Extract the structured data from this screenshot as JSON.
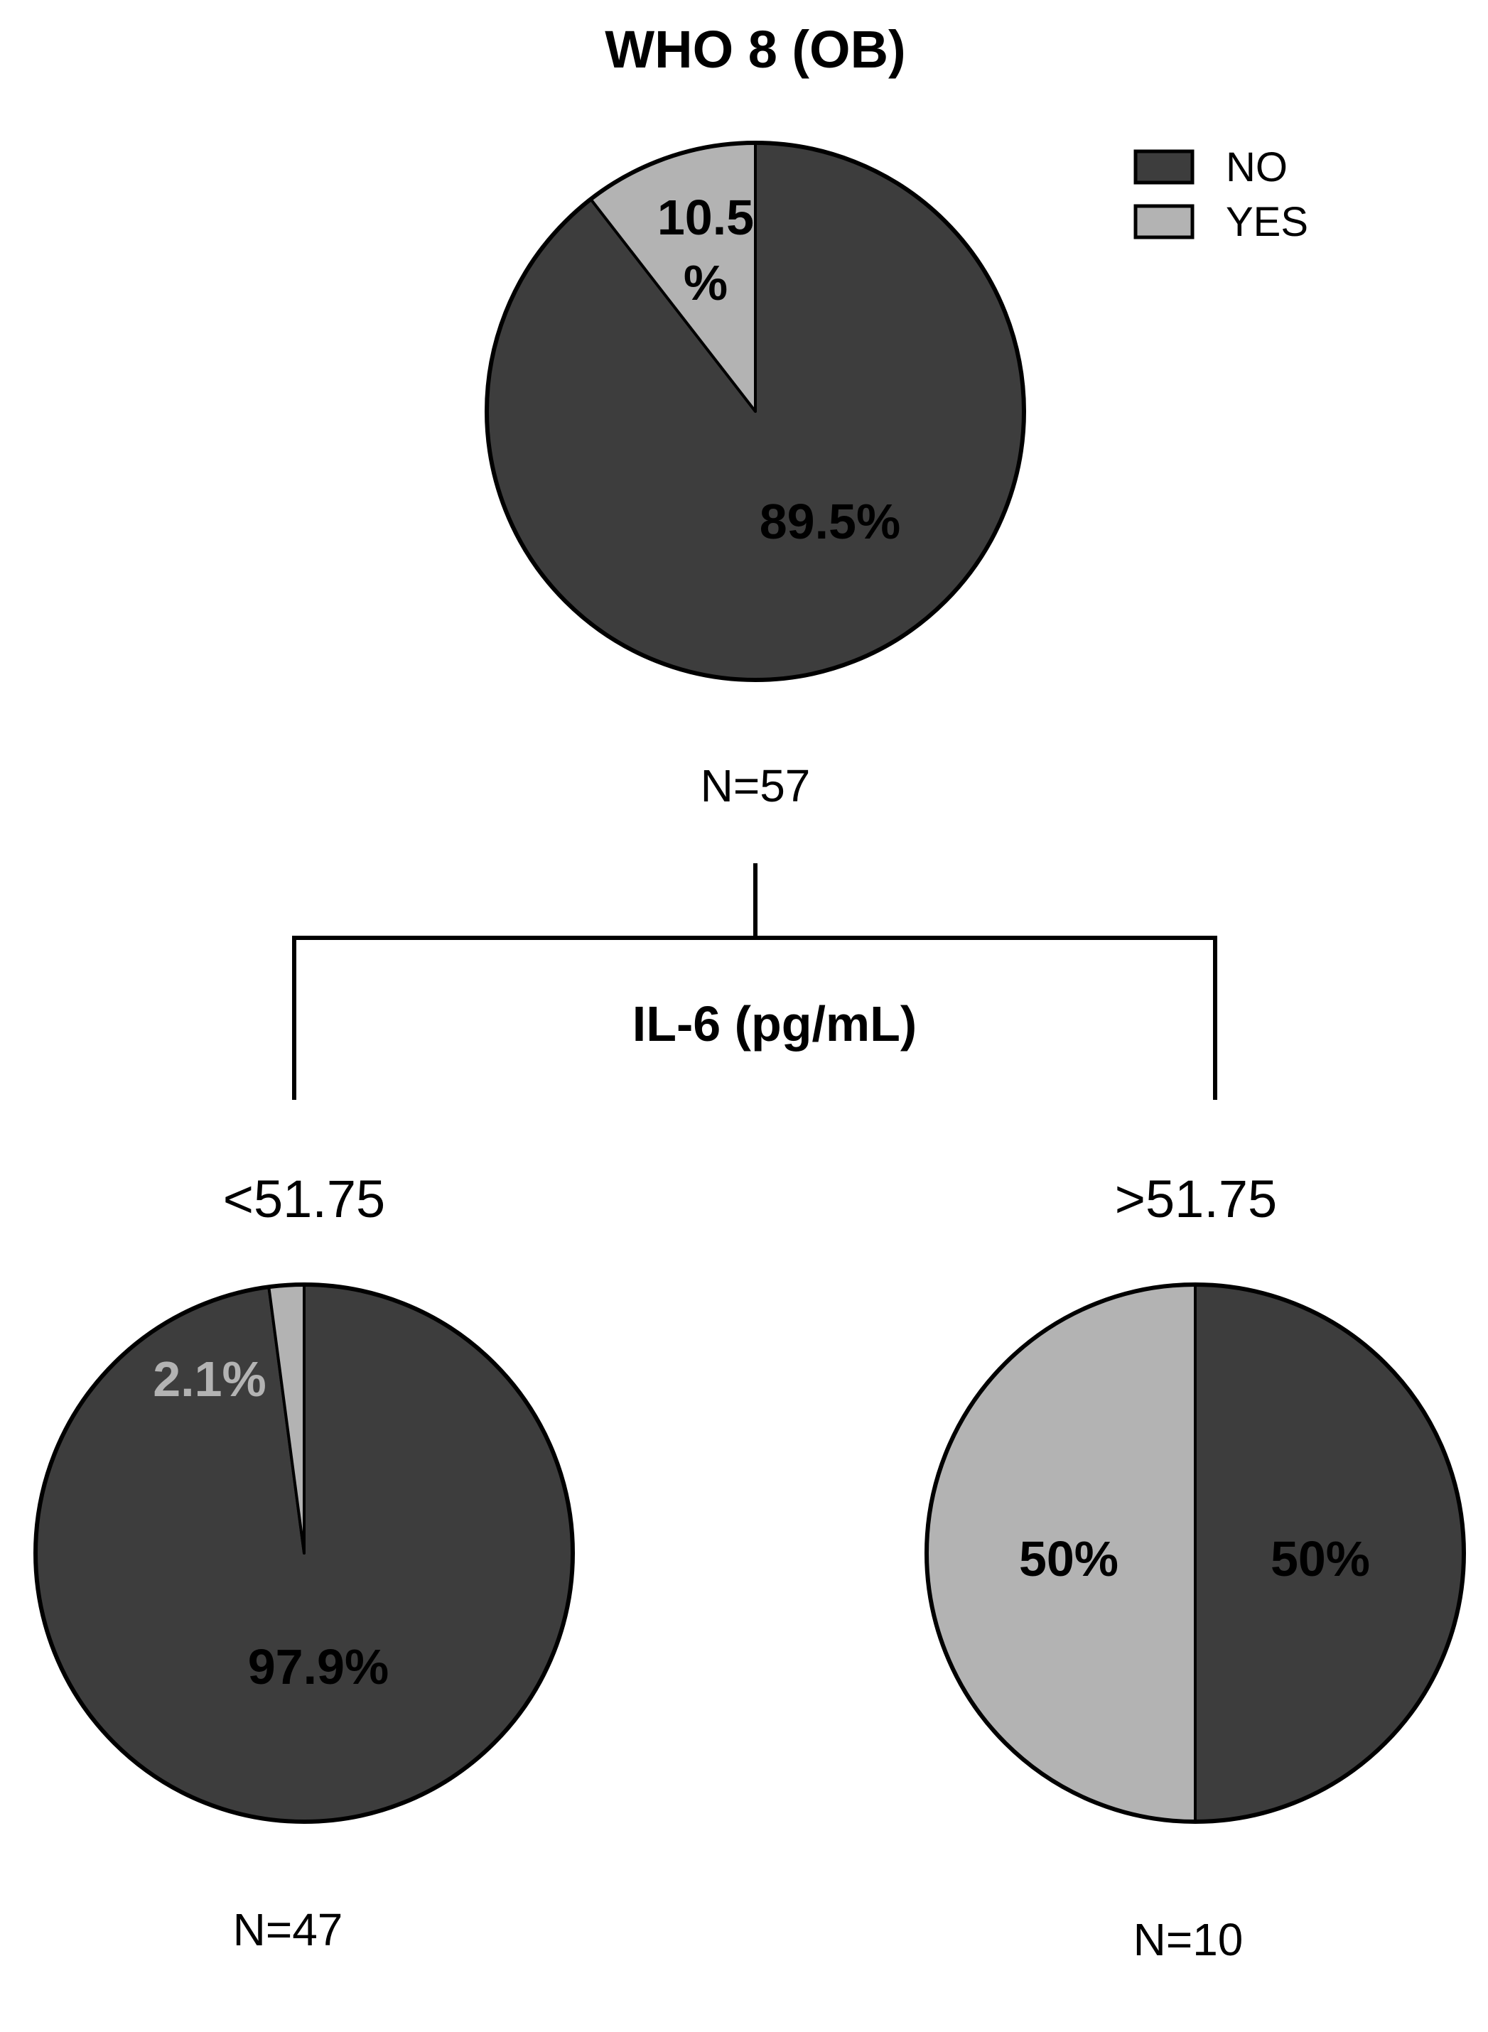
{
  "chart_data": [
    {
      "type": "pie",
      "title": "WHO 8 (OB)",
      "n_label": "N=57",
      "slices": [
        {
          "category": "NO",
          "value": 89.5,
          "label": "89.5%"
        },
        {
          "category": "YES",
          "value": 10.5,
          "label": "10.5 %"
        }
      ]
    },
    {
      "type": "pie",
      "title": "<51.75",
      "n_label": "N=47",
      "slices": [
        {
          "category": "NO",
          "value": 97.9,
          "label": "97.9%"
        },
        {
          "category": "YES",
          "value": 2.1,
          "label": "2.1%"
        }
      ]
    },
    {
      "type": "pie",
      "title": ">51.75",
      "n_label": "N=10",
      "slices": [
        {
          "category": "NO",
          "value": 50,
          "label": "50%"
        },
        {
          "category": "YES",
          "value": 50,
          "label": "50%"
        }
      ]
    }
  ],
  "split": {
    "label": "IL-6 (pg/mL)"
  },
  "legend": {
    "placement": "top-right",
    "items": [
      {
        "label": "NO",
        "color": "#3d3d3d"
      },
      {
        "label": "YES",
        "color": "#b3b3b3"
      }
    ]
  },
  "colors": {
    "no": "#3d3d3d",
    "yes": "#b3b3b3",
    "outline": "#000000"
  }
}
